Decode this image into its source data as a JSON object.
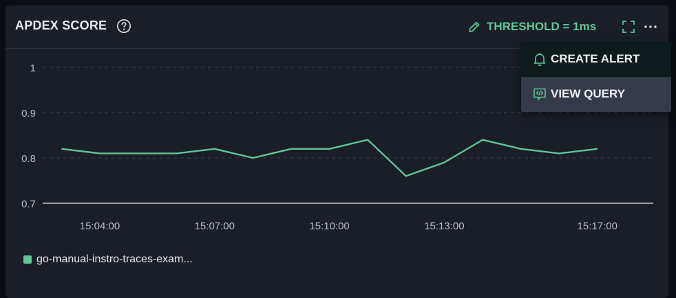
{
  "header": {
    "title": "APDEX SCORE",
    "threshold_label": "THRESHOLD = 1ms"
  },
  "menu": {
    "items": [
      {
        "label": "CREATE ALERT",
        "icon": "bell-icon"
      },
      {
        "label": "VIEW QUERY",
        "icon": "code-icon"
      }
    ]
  },
  "colors": {
    "accent": "#5fc795",
    "panel_bg": "#1a1e27"
  },
  "chart_data": {
    "type": "line",
    "y_ticks": [
      "1",
      "0.9",
      "0.8",
      "0.7"
    ],
    "ylim": [
      0.7,
      1.0
    ],
    "x_ticks": [
      "15:04:00",
      "15:07:00",
      "15:10:00",
      "15:13:00",
      "15:17:00"
    ],
    "series": [
      {
        "name": "go-manual-instro-traces-exam...",
        "x": [
          "15:03:00",
          "15:04:00",
          "15:05:00",
          "15:06:00",
          "15:07:00",
          "15:08:00",
          "15:09:00",
          "15:10:00",
          "15:11:00",
          "15:12:00",
          "15:13:00",
          "15:14:00",
          "15:15:00",
          "15:16:00",
          "15:17:00"
        ],
        "values": [
          0.82,
          0.81,
          0.81,
          0.81,
          0.82,
          0.8,
          0.82,
          0.82,
          0.84,
          0.76,
          0.79,
          0.84,
          0.82,
          0.81,
          0.82
        ]
      }
    ],
    "grid": true,
    "legend": "bottom-left"
  }
}
